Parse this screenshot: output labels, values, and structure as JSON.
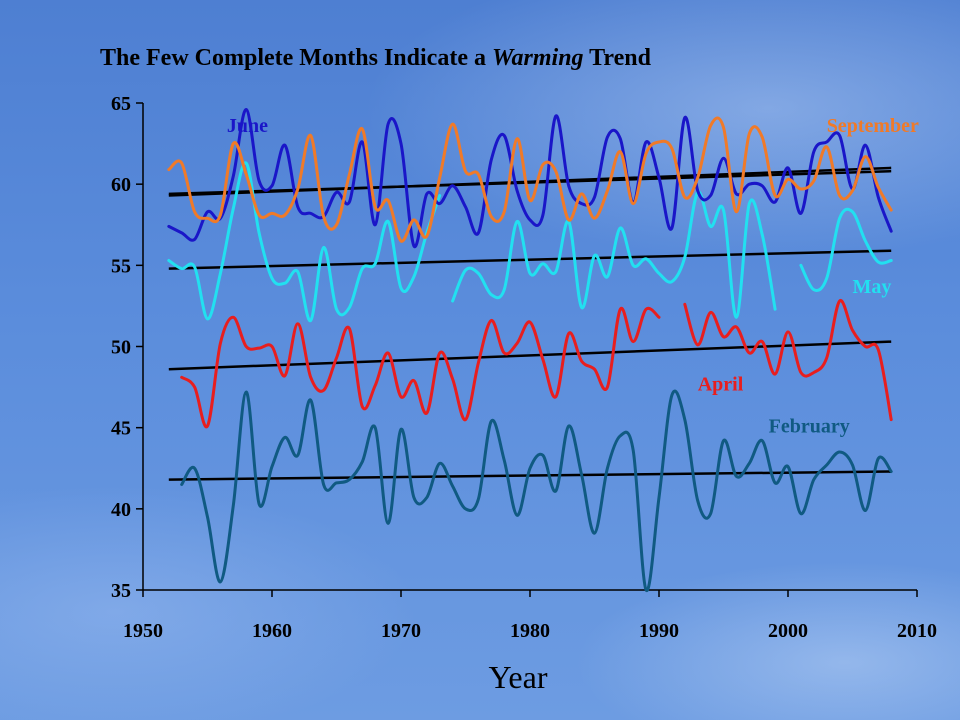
{
  "chart_data": {
    "type": "line",
    "title_pre": "The Few Complete Months Indicate a ",
    "title_em": "Warming",
    "title_post": " Trend",
    "xlabel": "Year",
    "ylabel": "",
    "xlim": [
      1950,
      2010
    ],
    "ylim": [
      35,
      65
    ],
    "xticks": [
      1950,
      1960,
      1970,
      1980,
      1990,
      2000,
      2010
    ],
    "yticks": [
      35,
      40,
      45,
      50,
      55,
      60,
      65
    ],
    "grid": false,
    "legend": "inline-labels",
    "series": [
      {
        "name": "June",
        "color": "#1a16c8",
        "label_x": 1956.5,
        "label_y": 63.2,
        "points": [
          [
            1952,
            57.4
          ],
          [
            1953,
            57.0
          ],
          [
            1954,
            56.6
          ],
          [
            1955,
            58.3
          ],
          [
            1956,
            57.9
          ],
          [
            1957,
            60.5
          ],
          [
            1958,
            64.6
          ],
          [
            1959,
            60.2
          ],
          [
            1960,
            59.9
          ],
          [
            1961,
            62.4
          ],
          [
            1962,
            58.6
          ],
          [
            1963,
            58.2
          ],
          [
            1964,
            58.0
          ],
          [
            1965,
            59.5
          ],
          [
            1966,
            58.9
          ],
          [
            1967,
            62.6
          ],
          [
            1968,
            57.5
          ],
          [
            1969,
            63.7
          ],
          [
            1970,
            62.5
          ],
          [
            1971,
            56.2
          ],
          [
            1972,
            59.4
          ],
          [
            1973,
            58.8
          ],
          [
            1974,
            59.9
          ],
          [
            1975,
            58.6
          ],
          [
            1976,
            57.0
          ],
          [
            1977,
            61.5
          ],
          [
            1978,
            63.0
          ],
          [
            1979,
            59.6
          ],
          [
            1980,
            57.8
          ],
          [
            1981,
            58.1
          ],
          [
            1982,
            64.2
          ],
          [
            1983,
            59.9
          ],
          [
            1984,
            58.8
          ],
          [
            1985,
            59.2
          ],
          [
            1986,
            62.9
          ],
          [
            1987,
            62.8
          ],
          [
            1988,
            58.9
          ],
          [
            1989,
            62.6
          ],
          [
            1990,
            60.4
          ],
          [
            1991,
            57.3
          ],
          [
            1992,
            64.1
          ],
          [
            1993,
            59.6
          ],
          [
            1994,
            59.3
          ],
          [
            1995,
            61.6
          ],
          [
            1996,
            59.4
          ],
          [
            1997,
            60.0
          ],
          [
            1998,
            59.9
          ],
          [
            1999,
            58.9
          ],
          [
            2000,
            61.0
          ],
          [
            2001,
            58.2
          ],
          [
            2002,
            62.0
          ],
          [
            2003,
            62.6
          ],
          [
            2004,
            63.0
          ],
          [
            2005,
            59.7
          ],
          [
            2006,
            62.4
          ],
          [
            2007,
            59.2
          ],
          [
            2008,
            57.1
          ]
        ]
      },
      {
        "name": "September",
        "color": "#f07a28",
        "label_x": 2003.0,
        "label_y": 63.2,
        "points": [
          [
            1952,
            60.9
          ],
          [
            1953,
            61.3
          ],
          [
            1954,
            58.3
          ],
          [
            1955,
            57.9
          ],
          [
            1956,
            58.1
          ],
          [
            1957,
            62.5
          ],
          [
            1958,
            60.6
          ],
          [
            1959,
            58.1
          ],
          [
            1960,
            58.2
          ],
          [
            1961,
            58.1
          ],
          [
            1962,
            59.7
          ],
          [
            1963,
            63.0
          ],
          [
            1964,
            58.0
          ],
          [
            1965,
            57.5
          ],
          [
            1966,
            60.6
          ],
          [
            1967,
            63.4
          ],
          [
            1968,
            58.6
          ],
          [
            1969,
            59.0
          ],
          [
            1970,
            56.5
          ],
          [
            1971,
            57.8
          ],
          [
            1972,
            56.8
          ],
          [
            1973,
            60.4
          ],
          [
            1974,
            63.7
          ],
          [
            1975,
            60.8
          ],
          [
            1976,
            60.6
          ],
          [
            1977,
            58.0
          ],
          [
            1978,
            58.3
          ],
          [
            1979,
            62.8
          ],
          [
            1980,
            59.0
          ],
          [
            1981,
            61.2
          ],
          [
            1982,
            60.8
          ],
          [
            1983,
            57.8
          ],
          [
            1984,
            59.4
          ],
          [
            1985,
            57.9
          ],
          [
            1986,
            59.6
          ],
          [
            1987,
            62.0
          ],
          [
            1988,
            58.8
          ],
          [
            1989,
            61.9
          ],
          [
            1990,
            62.6
          ],
          [
            1991,
            62.2
          ],
          [
            1992,
            59.2
          ],
          [
            1993,
            60.4
          ],
          [
            1994,
            63.6
          ],
          [
            1995,
            63.5
          ],
          [
            1996,
            58.3
          ],
          [
            1997,
            63.1
          ],
          [
            1998,
            62.9
          ],
          [
            1999,
            59.3
          ],
          [
            2000,
            60.3
          ],
          [
            2001,
            59.7
          ],
          [
            2002,
            60.2
          ],
          [
            2003,
            62.3
          ],
          [
            2004,
            59.3
          ],
          [
            2005,
            59.6
          ],
          [
            2006,
            61.7
          ],
          [
            2007,
            59.8
          ],
          [
            2008,
            58.4
          ]
        ]
      },
      {
        "name": "",
        "color": "#22e0f0",
        "label_x": 0,
        "label_y": 0,
        "points": [
          [
            1952,
            55.3
          ],
          [
            1953,
            54.8
          ],
          [
            1954,
            54.9
          ],
          [
            1955,
            51.7
          ],
          [
            1956,
            54.5
          ],
          [
            1957,
            58.5
          ],
          [
            1958,
            61.3
          ],
          [
            1959,
            57.0
          ],
          [
            1960,
            54.2
          ],
          [
            1961,
            53.9
          ],
          [
            1962,
            54.6
          ],
          [
            1963,
            51.6
          ],
          [
            1964,
            56.1
          ],
          [
            1965,
            52.3
          ],
          [
            1966,
            52.4
          ],
          [
            1967,
            54.8
          ],
          [
            1968,
            55.1
          ],
          [
            1969,
            57.7
          ],
          [
            1970,
            53.6
          ],
          [
            1971,
            54.3
          ],
          [
            1972,
            57.0
          ],
          [
            1973,
            59.3
          ]
        ]
      },
      {
        "name": "",
        "color": "#22e0f0",
        "label_x": 0,
        "label_y": 0,
        "points": [
          [
            1974,
            52.8
          ],
          [
            1975,
            54.7
          ],
          [
            1976,
            54.5
          ],
          [
            1977,
            53.2
          ],
          [
            1978,
            53.5
          ],
          [
            1979,
            57.7
          ],
          [
            1980,
            54.5
          ],
          [
            1981,
            55.1
          ],
          [
            1982,
            54.6
          ],
          [
            1983,
            57.7
          ],
          [
            1984,
            52.4
          ],
          [
            1985,
            55.6
          ],
          [
            1986,
            54.3
          ],
          [
            1987,
            57.3
          ],
          [
            1988,
            55.0
          ],
          [
            1989,
            55.4
          ],
          [
            1990,
            54.5
          ],
          [
            1991,
            54.0
          ],
          [
            1992,
            55.5
          ],
          [
            1993,
            59.5
          ],
          [
            1994,
            57.4
          ],
          [
            1995,
            58.4
          ],
          [
            1996,
            51.8
          ],
          [
            1997,
            58.8
          ],
          [
            1998,
            56.9
          ],
          [
            1999,
            52.3
          ]
        ]
      },
      {
        "name": "May",
        "color": "#22e0f0",
        "label_x": 2005.0,
        "label_y": 53.3,
        "points": [
          [
            2001,
            55.0
          ],
          [
            2002,
            53.5
          ],
          [
            2003,
            54.2
          ],
          [
            2004,
            57.9
          ],
          [
            2005,
            58.3
          ],
          [
            2006,
            56.5
          ],
          [
            2007,
            55.2
          ],
          [
            2008,
            55.3
          ]
        ]
      },
      {
        "name": "",
        "color": "#e81e1e",
        "label_x": 0,
        "label_y": 0,
        "points": [
          [
            1953,
            48.1
          ],
          [
            1954,
            47.5
          ],
          [
            1955,
            45.1
          ],
          [
            1956,
            50.2
          ],
          [
            1957,
            51.8
          ],
          [
            1958,
            50.0
          ],
          [
            1959,
            49.9
          ],
          [
            1960,
            50.0
          ],
          [
            1961,
            48.2
          ],
          [
            1962,
            51.4
          ],
          [
            1963,
            48.1
          ],
          [
            1964,
            47.3
          ],
          [
            1965,
            49.3
          ],
          [
            1966,
            51.1
          ],
          [
            1967,
            46.3
          ],
          [
            1968,
            47.6
          ],
          [
            1969,
            49.6
          ],
          [
            1970,
            46.9
          ],
          [
            1971,
            47.9
          ],
          [
            1972,
            45.9
          ],
          [
            1973,
            49.6
          ],
          [
            1974,
            48.0
          ],
          [
            1975,
            45.5
          ],
          [
            1976,
            49.0
          ],
          [
            1977,
            51.6
          ],
          [
            1978,
            49.6
          ],
          [
            1979,
            50.2
          ],
          [
            1980,
            51.5
          ],
          [
            1981,
            49.2
          ],
          [
            1982,
            46.9
          ],
          [
            1983,
            50.8
          ],
          [
            1984,
            49.1
          ],
          [
            1985,
            48.6
          ],
          [
            1986,
            47.5
          ],
          [
            1987,
            52.3
          ],
          [
            1988,
            50.3
          ],
          [
            1989,
            52.3
          ],
          [
            1990,
            51.8
          ]
        ]
      },
      {
        "name": "April",
        "color": "#e81e1e",
        "label_x": 1993.0,
        "label_y": 47.3,
        "points": [
          [
            1992,
            52.6
          ],
          [
            1993,
            50.1
          ],
          [
            1994,
            52.1
          ],
          [
            1995,
            50.6
          ],
          [
            1996,
            51.2
          ],
          [
            1997,
            49.6
          ],
          [
            1998,
            50.3
          ],
          [
            1999,
            48.3
          ],
          [
            2000,
            50.9
          ],
          [
            2001,
            48.4
          ],
          [
            2002,
            48.4
          ],
          [
            2003,
            49.3
          ],
          [
            2004,
            52.8
          ],
          [
            2005,
            51.0
          ],
          [
            2006,
            50.0
          ],
          [
            2007,
            49.8
          ],
          [
            2008,
            45.5
          ]
        ]
      },
      {
        "name": "February",
        "color": "#105a82",
        "label_x": 1998.5,
        "label_y": 44.7,
        "points": [
          [
            1953,
            41.5
          ],
          [
            1954,
            42.5
          ],
          [
            1955,
            39.5
          ],
          [
            1956,
            35.5
          ],
          [
            1957,
            40.2
          ],
          [
            1958,
            47.2
          ],
          [
            1959,
            40.3
          ],
          [
            1960,
            42.6
          ],
          [
            1961,
            44.4
          ],
          [
            1962,
            43.3
          ],
          [
            1963,
            46.7
          ],
          [
            1964,
            41.5
          ],
          [
            1965,
            41.6
          ],
          [
            1966,
            41.8
          ],
          [
            1967,
            42.9
          ],
          [
            1968,
            45.0
          ],
          [
            1969,
            39.1
          ],
          [
            1970,
            44.9
          ],
          [
            1971,
            40.7
          ],
          [
            1972,
            40.7
          ],
          [
            1973,
            42.8
          ],
          [
            1974,
            41.4
          ],
          [
            1975,
            40.0
          ],
          [
            1976,
            40.6
          ],
          [
            1977,
            45.4
          ],
          [
            1978,
            43.0
          ],
          [
            1979,
            39.6
          ],
          [
            1980,
            42.5
          ],
          [
            1981,
            43.3
          ],
          [
            1982,
            41.1
          ],
          [
            1983,
            45.1
          ],
          [
            1984,
            42.1
          ],
          [
            1985,
            38.5
          ],
          [
            1986,
            42.5
          ],
          [
            1987,
            44.5
          ],
          [
            1988,
            43.6
          ],
          [
            1989,
            35.0
          ],
          [
            1990,
            40.7
          ],
          [
            1991,
            47.0
          ],
          [
            1992,
            45.5
          ],
          [
            1993,
            40.5
          ],
          [
            1994,
            39.7
          ],
          [
            1995,
            44.2
          ],
          [
            1996,
            42.0
          ],
          [
            1997,
            42.8
          ],
          [
            1998,
            44.2
          ],
          [
            1999,
            41.6
          ],
          [
            2000,
            42.6
          ],
          [
            2001,
            39.7
          ],
          [
            2002,
            41.8
          ],
          [
            2003,
            42.7
          ],
          [
            2004,
            43.5
          ],
          [
            2005,
            42.7
          ],
          [
            2006,
            39.9
          ],
          [
            2007,
            43.1
          ],
          [
            2008,
            42.3
          ]
        ]
      }
    ],
    "trendlines": [
      {
        "from": [
          1952,
          59.3
        ],
        "to": [
          2008,
          61.0
        ]
      },
      {
        "from": [
          1952,
          59.4
        ],
        "to": [
          2008,
          60.8
        ]
      },
      {
        "from": [
          1952,
          54.8
        ],
        "to": [
          2008,
          55.9
        ]
      },
      {
        "from": [
          1952,
          48.6
        ],
        "to": [
          2008,
          50.3
        ]
      },
      {
        "from": [
          1952,
          41.8
        ],
        "to": [
          2008,
          42.3
        ]
      }
    ]
  }
}
